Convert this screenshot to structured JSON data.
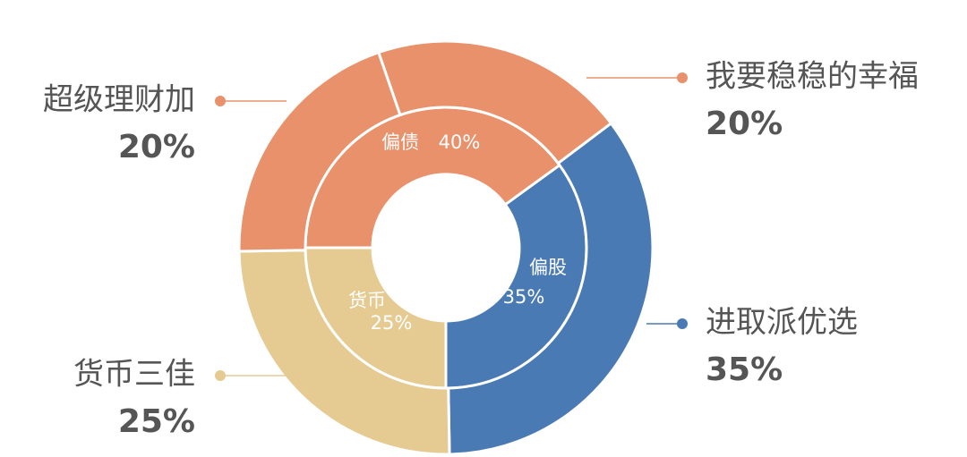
{
  "chart_data": {
    "type": "nested-donut",
    "rings": [
      {
        "categories": [
          "偏债",
          "偏股",
          "货币"
        ],
        "values": [
          40,
          35,
          25
        ],
        "value_labels": [
          "40%",
          "35%",
          "25%"
        ],
        "colors": [
          "#E8916B",
          "#4A7AB3",
          "#E5CB92"
        ]
      },
      {
        "categories": [
          "我要稳稳的幸福",
          "进取派优选",
          "货币三佳",
          "超级理财加"
        ],
        "values": [
          20,
          35,
          25,
          20
        ],
        "value_labels": [
          "20%",
          "35%",
          "25%",
          "20%"
        ],
        "colors": [
          "#E8916B",
          "#4A7AB3",
          "#E5CB92",
          "#E8916B"
        ]
      }
    ]
  }
}
